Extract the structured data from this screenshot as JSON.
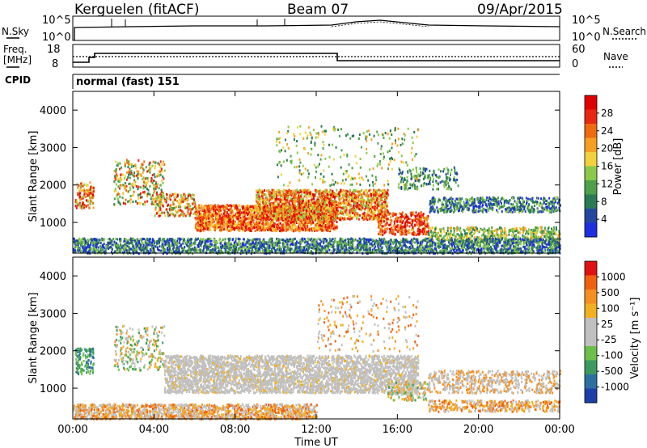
{
  "header": {
    "radar": "Kerguelen (fitACF)",
    "beam": "Beam 07",
    "date": "09/Apr/2015"
  },
  "noise_panel": {
    "left_label": "N.Sky",
    "left_ticks": [
      "10^5",
      "10^0"
    ],
    "right_ticks": [
      "10^5",
      "10^0"
    ],
    "right_label": "N.Search"
  },
  "freq_panel": {
    "left_label_1": "Freq.",
    "left_label_2": "[MHz]",
    "left_ticks": [
      "18",
      "8"
    ],
    "right_ticks": [
      "60",
      "0"
    ],
    "right_label": "Nave"
  },
  "cpid": {
    "label": "CPID",
    "value": "normal (fast) 151"
  },
  "colors": {
    "white": "#ffffff",
    "ground_scatter_grey": "#c0c0c0"
  },
  "chart_data": [
    {
      "type": "heatmap",
      "title": "",
      "ylabel": "Slant Range [km]",
      "xlabel": "",
      "x_range_hours": [
        0,
        24
      ],
      "ylim": [
        180,
        4500
      ],
      "y_ticks": [
        1000,
        2000,
        3000,
        4000
      ],
      "colorbar": {
        "label": "Power [dB]",
        "ticks": [
          "4",
          "8",
          "12",
          "16",
          "20",
          "24",
          "28"
        ],
        "colors": [
          "#1e2fe0",
          "#2446a0",
          "#2a7a55",
          "#4ea04a",
          "#8cc84a",
          "#f2d23a",
          "#f5a020",
          "#f06a10",
          "#e82810",
          "#e00000"
        ]
      }
    },
    {
      "type": "heatmap",
      "title": "",
      "ylabel": "Slant Range [km]",
      "xlabel": "Time UT",
      "x_range_hours": [
        0,
        24
      ],
      "ylim": [
        180,
        4500
      ],
      "y_ticks": [
        1000,
        2000,
        3000,
        4000
      ],
      "x_ticks": [
        "00:00",
        "04:00",
        "08:00",
        "12:00",
        "16:00",
        "20:00",
        "00:00"
      ],
      "colorbar": {
        "label": "Velocity [m s⁻¹]",
        "ticks": [
          "1000",
          "500",
          "100",
          "25",
          "-25",
          "-100",
          "-500",
          "-1000"
        ],
        "colors": [
          "#1f3fa8",
          "#2c6fa0",
          "#3c9a60",
          "#6cc04a",
          "#c0c0c0",
          "#c0c0c0",
          "#f0b020",
          "#f59020",
          "#f06010",
          "#e01010"
        ]
      }
    }
  ]
}
